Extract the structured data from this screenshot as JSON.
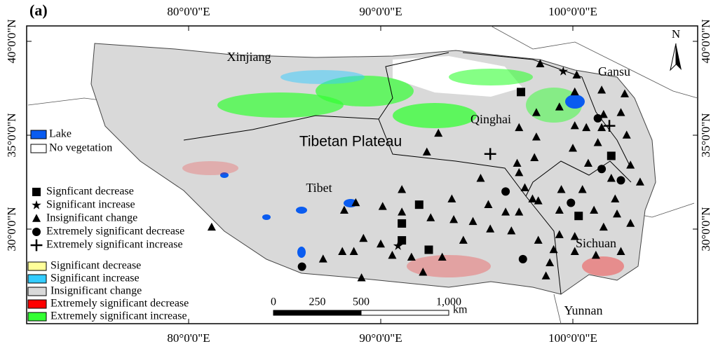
{
  "panel_label": "(a)",
  "lon_ticks": [
    {
      "value": 80,
      "label": "80°0'0\"E"
    },
    {
      "value": 90,
      "label": "90°0'0\"E"
    },
    {
      "value": 100,
      "label": "100°0'0\"E"
    }
  ],
  "lat_ticks": [
    {
      "value": 40,
      "label": "40°0'0\"N"
    },
    {
      "value": 35,
      "label": "35°0'0\"N"
    },
    {
      "value": 30,
      "label": "30°0'0\"N"
    }
  ],
  "regions": [
    "Xinjiang",
    "Gansu",
    "Qinghai",
    "Tibetan Plateau",
    "Tibet",
    "Sichuan",
    "Yunnan"
  ],
  "north_label": "N",
  "layer_legend": [
    {
      "label": "Lake",
      "color": "#0a5cf0"
    },
    {
      "label": "No vegetation",
      "color": "#ffffff"
    }
  ],
  "point_legend": [
    {
      "label": "Signficant decrease",
      "symbol": "square",
      "points": [
        [
          97.3,
          37.3
        ],
        [
          102.0,
          33.9
        ],
        [
          92.0,
          31.3
        ],
        [
          91.1,
          30.3
        ],
        [
          91.1,
          29.4
        ],
        [
          92.5,
          28.9
        ],
        [
          100.3,
          30.7
        ]
      ]
    },
    {
      "label": "Significant increase",
      "symbol": "star",
      "points": [
        [
          99.5,
          38.4
        ],
        [
          90.9,
          29.1
        ]
      ]
    },
    {
      "label": "Insignificant change",
      "symbol": "triangle",
      "points": [
        [
          98.3,
          38.8
        ],
        [
          100.2,
          38.2
        ],
        [
          101.5,
          37.4
        ],
        [
          102.7,
          37.2
        ],
        [
          100.1,
          37.3
        ],
        [
          98.1,
          36.2
        ],
        [
          99.3,
          36.5
        ],
        [
          102.5,
          36.2
        ],
        [
          101.6,
          36.1
        ],
        [
          100.1,
          35.5
        ],
        [
          100.7,
          35.4
        ],
        [
          101.5,
          35.4
        ],
        [
          97.2,
          35.4
        ],
        [
          98.1,
          34.9
        ],
        [
          102.8,
          35.0
        ],
        [
          93.0,
          35.1
        ],
        [
          92.4,
          34.1
        ],
        [
          95.2,
          32.7
        ],
        [
          97.1,
          33.5
        ],
        [
          97.2,
          33.0
        ],
        [
          98.0,
          33.8
        ],
        [
          100.0,
          34.3
        ],
        [
          101.3,
          34.6
        ],
        [
          100.8,
          33.5
        ],
        [
          103.0,
          33.4
        ],
        [
          102.0,
          32.7
        ],
        [
          103.5,
          32.5
        ],
        [
          100.5,
          32.1
        ],
        [
          99.4,
          32.1
        ],
        [
          97.5,
          32.2
        ],
        [
          97.9,
          31.6
        ],
        [
          91.1,
          32.1
        ],
        [
          90.1,
          31.2
        ],
        [
          88.7,
          31.4
        ],
        [
          88.1,
          31.0
        ],
        [
          91.1,
          30.9
        ],
        [
          93.7,
          31.6
        ],
        [
          92.6,
          30.6
        ],
        [
          93.8,
          30.5
        ],
        [
          95.6,
          31.3
        ],
        [
          96.5,
          30.9
        ],
        [
          97.2,
          30.9
        ],
        [
          94.8,
          30.4
        ],
        [
          95.7,
          30.0
        ],
        [
          96.8,
          29.9
        ],
        [
          98.2,
          31.5
        ],
        [
          99.3,
          31.0
        ],
        [
          101.1,
          31.0
        ],
        [
          102.2,
          31.6
        ],
        [
          102.3,
          30.8
        ],
        [
          101.6,
          30.1
        ],
        [
          103.0,
          30.3
        ],
        [
          99.3,
          29.7
        ],
        [
          98.2,
          29.4
        ],
        [
          100.1,
          29.6
        ],
        [
          99.0,
          28.9
        ],
        [
          100.1,
          28.8
        ],
        [
          101.2,
          28.6
        ],
        [
          102.5,
          28.8
        ],
        [
          94.3,
          29.4
        ],
        [
          93.2,
          28.5
        ],
        [
          92.2,
          27.7
        ],
        [
          91.6,
          28.5
        ],
        [
          90.6,
          28.6
        ],
        [
          90.0,
          29.2
        ],
        [
          89.1,
          29.5
        ],
        [
          88.6,
          28.8
        ],
        [
          88.0,
          28.8
        ],
        [
          87.0,
          28.4
        ],
        [
          89.0,
          27.4
        ],
        [
          98.6,
          27.5
        ],
        [
          98.8,
          28.2
        ],
        [
          81.2,
          30.1
        ]
      ]
    },
    {
      "label": "Extremely significant decrease",
      "symbol": "circle",
      "points": [
        [
          101.3,
          35.9
        ],
        [
          96.5,
          32.0
        ],
        [
          102.5,
          32.6
        ],
        [
          99.9,
          31.4
        ],
        [
          97.4,
          28.4
        ],
        [
          85.9,
          28.0
        ],
        [
          101.5,
          33.2
        ]
      ]
    },
    {
      "label": "Extremely significant increase",
      "symbol": "plus",
      "points": [
        [
          101.9,
          35.5
        ],
        [
          95.7,
          34.0
        ]
      ]
    }
  ],
  "raster_legend": [
    {
      "label": "Significant decrease",
      "color": "#ffff99"
    },
    {
      "label": "Significant  increase",
      "color": "#33ccff"
    },
    {
      "label": "Insignificant change",
      "color": "#d9d9d9"
    },
    {
      "label": "Extremely significant decrease",
      "color": "#ff0000"
    },
    {
      "label": "Extremely significant increase",
      "color": "#33ff33"
    }
  ],
  "scale_bar": {
    "ticks": [
      0,
      250,
      500,
      {
        "value": 1000,
        "label": "1,000"
      }
    ],
    "unit": "km"
  }
}
